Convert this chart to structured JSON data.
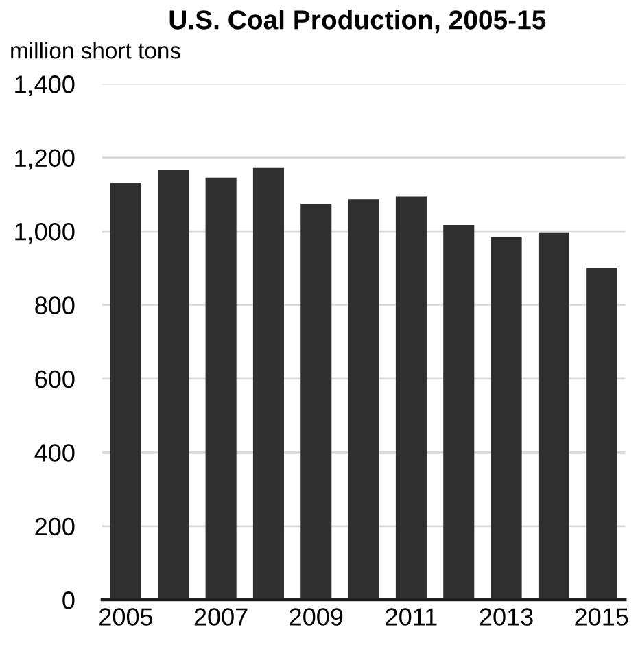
{
  "chart_data": {
    "type": "bar",
    "title": "U.S. Coal Production, 2005-15",
    "ylabel": "million short tons",
    "categories": [
      "2005",
      null,
      "2007",
      null,
      "2009",
      null,
      "2011",
      null,
      "2013",
      null,
      "2015"
    ],
    "values": [
      1132,
      1166,
      1146,
      1172,
      1074,
      1087,
      1094,
      1017,
      984,
      997,
      901
    ],
    "color": "#2f2f2f",
    "ylim": [
      0,
      1400
    ],
    "yticks": [
      0,
      200,
      400,
      600,
      800,
      {
        "value": 1000,
        "label": "1,000"
      },
      {
        "value": 1200,
        "label": "1,200"
      },
      {
        "value": 1400,
        "label": "1,400"
      }
    ],
    "grid": "y"
  }
}
